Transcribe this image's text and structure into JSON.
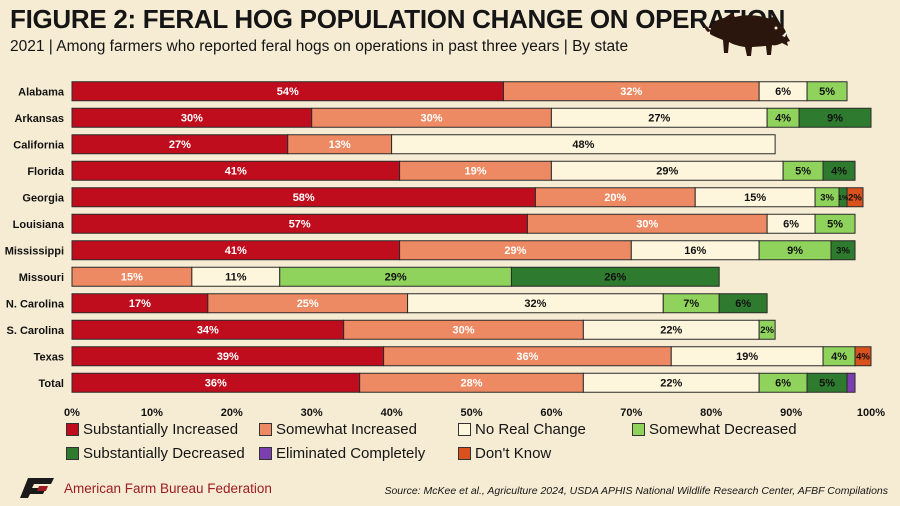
{
  "title": "FIGURE 2: FERAL HOG POPULATION CHANGE ON OPERATION",
  "subtitle": "2021 | Among farmers who reported feral hogs on operations in past three years | By state",
  "organization": "American Farm Bureau Federation",
  "source": "Source: McKee et al., Agriculture 2024, USDA APHIS National Wildlife Research Center, AFBF Compilations",
  "chart_data": {
    "type": "bar",
    "orientation": "horizontal",
    "stacked": true,
    "categories": [
      "Alabama",
      "Arkansas",
      "California",
      "Florida",
      "Georgia",
      "Louisiana",
      "Mississippi",
      "Missouri",
      "N. Carolina",
      "S. Carolina",
      "Texas",
      "Total"
    ],
    "xlim": [
      0,
      100
    ],
    "x_ticks": [
      "0%",
      "10%",
      "20%",
      "30%",
      "40%",
      "50%",
      "60%",
      "70%",
      "80%",
      "90%",
      "100%"
    ],
    "legend_position": "bottom",
    "series": [
      {
        "name": "Substantially Increased",
        "color": "#c00d1e",
        "label_color": "#ffffff",
        "values": [
          54,
          30,
          27,
          41,
          58,
          57,
          41,
          0,
          17,
          34,
          39,
          36
        ],
        "labels": [
          "54%",
          "30%",
          "27%",
          "41%",
          "58%",
          "57%",
          "41%",
          "",
          "17%",
          "34%",
          "39%",
          "36%"
        ]
      },
      {
        "name": "Somewhat Increased",
        "color": "#ee8a63",
        "label_color": "#ffffff",
        "values": [
          32,
          30,
          13,
          19,
          20,
          30,
          29,
          15,
          25,
          30,
          36,
          28
        ],
        "labels": [
          "32%",
          "30%",
          "13%",
          "19%",
          "20%",
          "30%",
          "29%",
          "15%",
          "25%",
          "30%",
          "36%",
          "28%"
        ]
      },
      {
        "name": "No Real Change",
        "color": "#fdf6dc",
        "label_color": "#111111",
        "values": [
          6,
          27,
          48,
          29,
          15,
          6,
          16,
          11,
          32,
          22,
          19,
          22
        ],
        "labels": [
          "6%",
          "27%",
          "48%",
          "29%",
          "15%",
          "6%",
          "16%",
          "11%",
          "32%",
          "22%",
          "19%",
          "22%"
        ]
      },
      {
        "name": "Somewhat Decreased",
        "color": "#8fd35c",
        "label_color": "#111111",
        "values": [
          5,
          4,
          0,
          5,
          3,
          5,
          9,
          29,
          7,
          2,
          4,
          6
        ],
        "labels": [
          "5%",
          "4%",
          "",
          "5%",
          "3%",
          "5%",
          "9%",
          "29%",
          "7%",
          "2%",
          "4%",
          "6%"
        ]
      },
      {
        "name": "Substantially Decreased",
        "color": "#2e7a2e",
        "label_color": "#111111",
        "values": [
          0,
          9,
          0,
          4,
          1,
          0,
          3,
          26,
          6,
          0,
          0,
          5
        ],
        "labels": [
          "",
          "9%",
          "",
          "4%",
          "1%",
          "",
          "3%",
          "26%",
          "6%",
          "",
          "",
          "5%"
        ]
      },
      {
        "name": "Eliminated Completely",
        "color": "#7b3fb0",
        "label_color": "#111111",
        "values": [
          0,
          0,
          0,
          0,
          0,
          0,
          0,
          0,
          0,
          0,
          0,
          1
        ],
        "labels": [
          "",
          "",
          "",
          "",
          "",
          "",
          "",
          "",
          "",
          "",
          "",
          ""
        ]
      },
      {
        "name": "Don't Know",
        "color": "#d9521d",
        "label_color": "#111111",
        "values": [
          0,
          0,
          0,
          0,
          2,
          0,
          0,
          0,
          0,
          0,
          4,
          0
        ],
        "labels": [
          "",
          "",
          "",
          "",
          "2%",
          "",
          "",
          "",
          "",
          "",
          "4%",
          ""
        ]
      }
    ]
  },
  "colors": {
    "background": "#f6ecd4",
    "brand_red": "#9c1c22",
    "gridline": "#d8c9a6"
  },
  "icons": {
    "hog": "feral-hog-silhouette-icon",
    "logo": "afbf-logo-icon"
  }
}
